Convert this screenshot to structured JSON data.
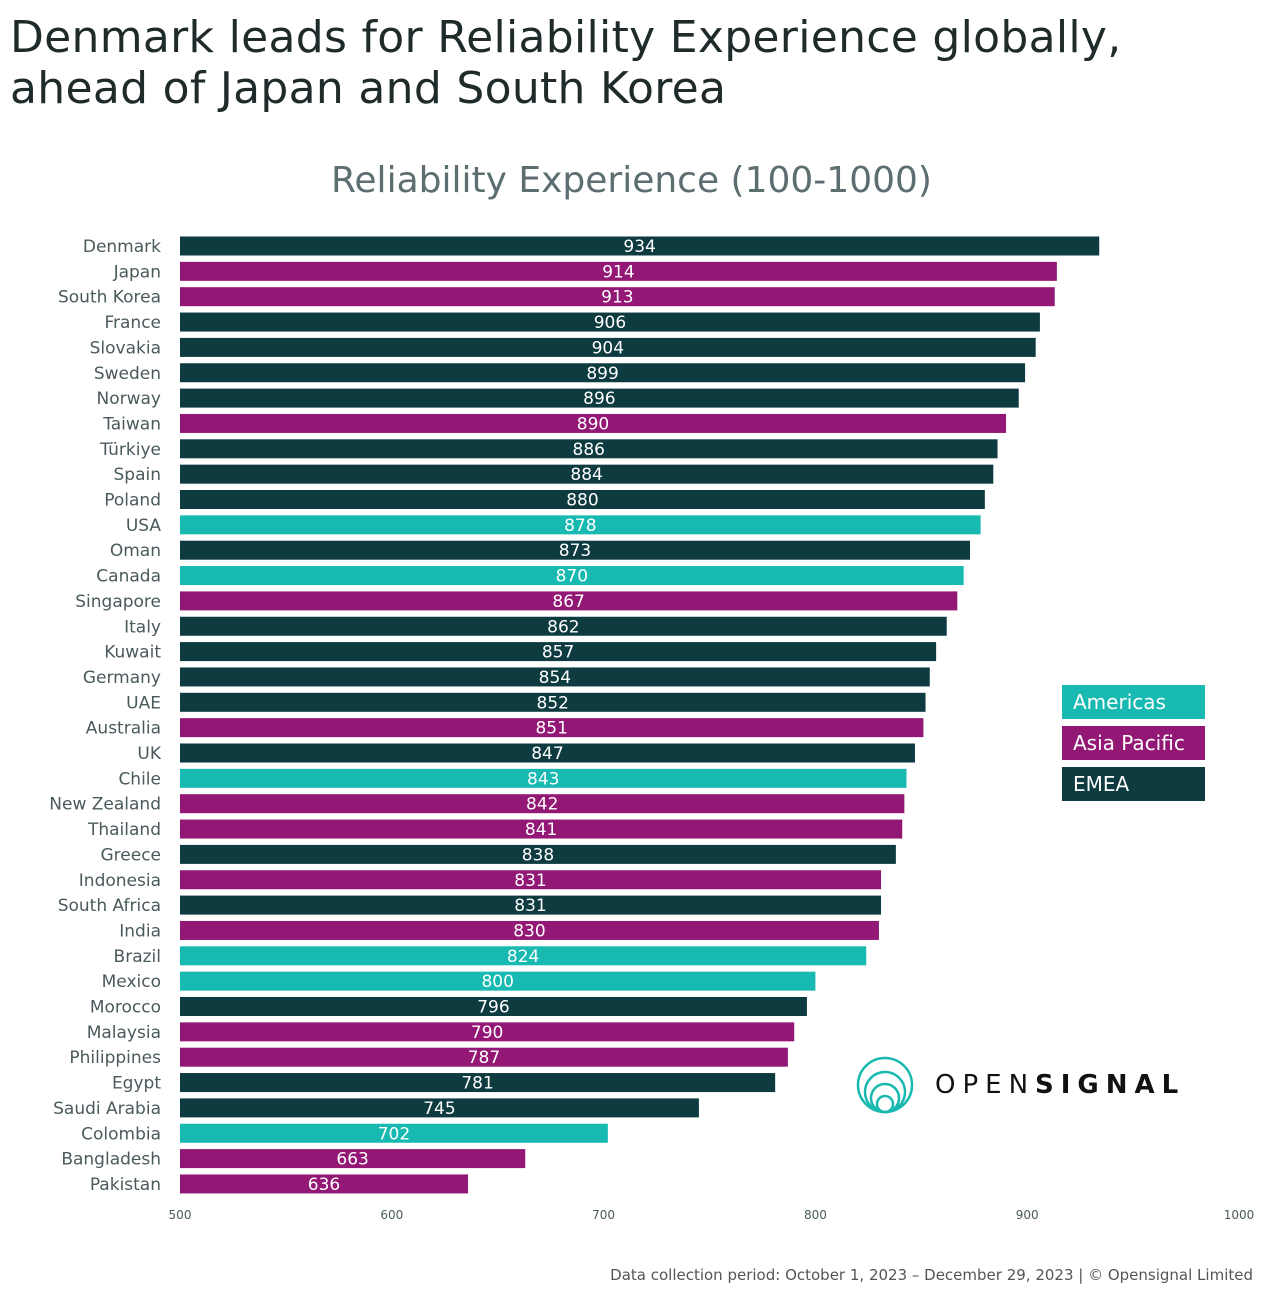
{
  "title_line1": "Denmark leads for Reliability Experience globally,",
  "title_line2": "ahead of Japan and South Korea",
  "footer": "Data collection period: October 1, 2023 – December 29, 2023  |  © Opensignal Limited",
  "logo": {
    "light": "OPEN",
    "bold": "SIGNAL",
    "icon": "concentric-circles-icon"
  },
  "colors": {
    "Americas": "#17b9b1",
    "Asia Pacific": "#931774",
    "EMEA": "#0d3b40"
  },
  "chart_data": {
    "type": "bar",
    "orientation": "horizontal",
    "title": "Reliability Experience (100-1000)",
    "xlim": [
      500,
      1000
    ],
    "xticks": [
      500,
      600,
      700,
      800,
      900,
      1000
    ],
    "grid": false,
    "legend": {
      "placement": "right",
      "entries": [
        "Americas",
        "Asia Pacific",
        "EMEA"
      ]
    },
    "categories": [
      "Denmark",
      "Japan",
      "South Korea",
      "France",
      "Slovakia",
      "Sweden",
      "Norway",
      "Taiwan",
      "Türkiye",
      "Spain",
      "Poland",
      "USA",
      "Oman",
      "Canada",
      "Singapore",
      "Italy",
      "Kuwait",
      "Germany",
      "UAE",
      "Australia",
      "UK",
      "Chile",
      "New Zealand",
      "Thailand",
      "Greece",
      "Indonesia",
      "South Africa",
      "India",
      "Brazil",
      "Mexico",
      "Morocco",
      "Malaysia",
      "Philippines",
      "Egypt",
      "Saudi Arabia",
      "Colombia",
      "Bangladesh",
      "Pakistan"
    ],
    "values": [
      934,
      914,
      913,
      906,
      904,
      899,
      896,
      890,
      886,
      884,
      880,
      878,
      873,
      870,
      867,
      862,
      857,
      854,
      852,
      851,
      847,
      843,
      842,
      841,
      838,
      831,
      831,
      830,
      824,
      800,
      796,
      790,
      787,
      781,
      745,
      702,
      663,
      636
    ],
    "regions": [
      "EMEA",
      "Asia Pacific",
      "Asia Pacific",
      "EMEA",
      "EMEA",
      "EMEA",
      "EMEA",
      "Asia Pacific",
      "EMEA",
      "EMEA",
      "EMEA",
      "Americas",
      "EMEA",
      "Americas",
      "Asia Pacific",
      "EMEA",
      "EMEA",
      "EMEA",
      "EMEA",
      "Asia Pacific",
      "EMEA",
      "Americas",
      "Asia Pacific",
      "Asia Pacific",
      "EMEA",
      "Asia Pacific",
      "EMEA",
      "Asia Pacific",
      "Americas",
      "Americas",
      "EMEA",
      "Asia Pacific",
      "Asia Pacific",
      "EMEA",
      "EMEA",
      "Americas",
      "Asia Pacific",
      "Asia Pacific"
    ]
  }
}
